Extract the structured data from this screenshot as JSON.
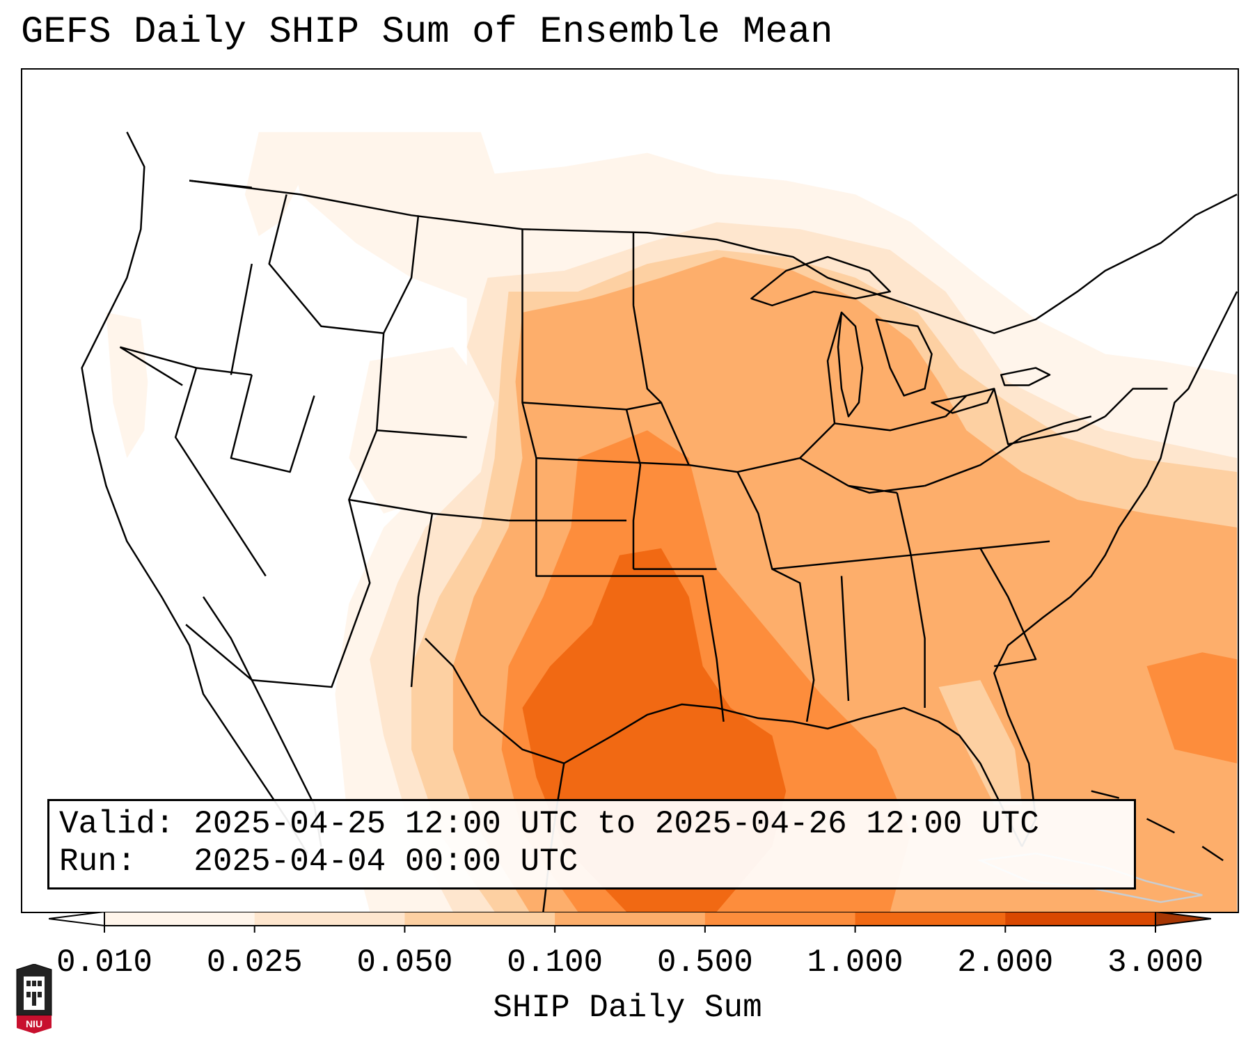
{
  "title": "GEFS Daily SHIP Sum of Ensemble Mean",
  "info_box": {
    "valid_line": "Valid: 2025-04-25 12:00 UTC to 2025-04-26 12:00 UTC",
    "run_line": "Run:   2025-04-04 00:00 UTC"
  },
  "colorbar": {
    "label": "SHIP Daily Sum",
    "ticks": [
      "0.010",
      "0.025",
      "0.050",
      "0.100",
      "0.500",
      "1.000",
      "2.000",
      "3.000"
    ],
    "colors": [
      "#fff5eb",
      "#fee6ce",
      "#fdd0a2",
      "#fdae6b",
      "#fd8d3c",
      "#f16913",
      "#d94801"
    ],
    "over_color": "#a63603",
    "under_color": "#ffffff",
    "extend": "both"
  },
  "logo": {
    "text": "NIU"
  },
  "map": {
    "projection": "Lambert Conformal",
    "region": "Contiguous United States",
    "field": "GEFS ensemble mean daily SHIP sum",
    "max_region": "Southeast Texas and northwestern Gulf of Mexico",
    "max_category": "1.000 - 2.000"
  }
}
